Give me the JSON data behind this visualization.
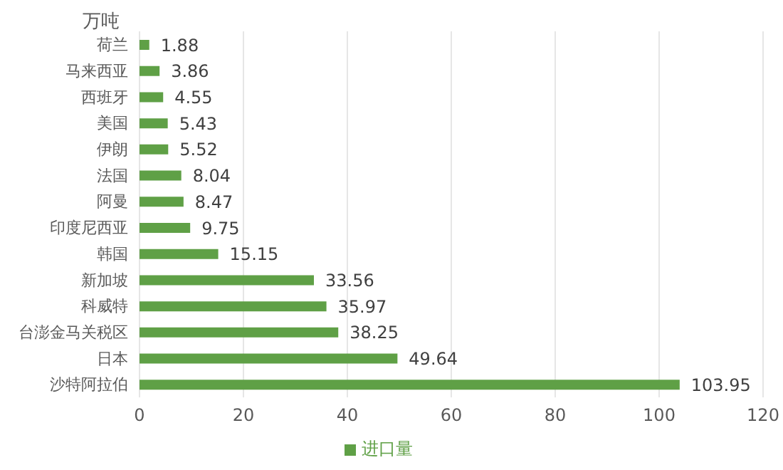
{
  "chart_data": {
    "type": "bar",
    "orientation": "horizontal",
    "ylabel": "万吨",
    "categories": [
      "荷兰",
      "马来西亚",
      "西班牙",
      "美国",
      "伊朗",
      "法国",
      "阿曼",
      "印度尼西亚",
      "韩国",
      "新加坡",
      "科威特",
      "台澎金马关税区",
      "日本",
      "沙特阿拉伯"
    ],
    "series": [
      {
        "name": "进口量",
        "color": "#5fa046",
        "values": [
          1.88,
          3.86,
          4.55,
          5.43,
          5.52,
          8.04,
          8.47,
          9.75,
          15.15,
          33.56,
          35.97,
          38.25,
          49.64,
          103.95
        ]
      }
    ],
    "xlim": [
      0,
      120
    ],
    "xticks": [
      0,
      20,
      40,
      60,
      80,
      100,
      120
    ],
    "grid": "x",
    "legend": "bottom",
    "data_labels": true
  }
}
